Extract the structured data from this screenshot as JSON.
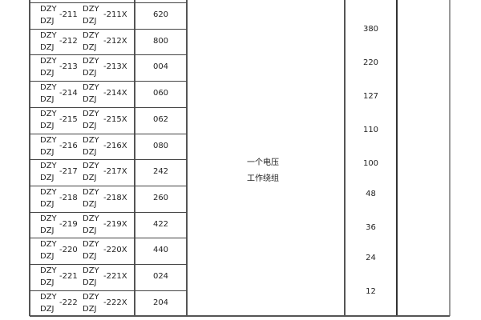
{
  "rows": [
    {
      "prefix_a": "DZY",
      "prefix_b": "DZJ",
      "code": "-211",
      "prefix_c": "DZY",
      "prefix_d": "DZJ",
      "code_x": "-211X",
      "number": "620"
    },
    {
      "prefix_a": "DZY",
      "prefix_b": "DZJ",
      "code": "-212",
      "prefix_c": "DZY",
      "prefix_d": "DZJ",
      "code_x": "-212X",
      "number": "800"
    },
    {
      "prefix_a": "DZY",
      "prefix_b": "DZJ",
      "code": "-213",
      "prefix_c": "DZY",
      "prefix_d": "DZJ",
      "code_x": "-213X",
      "number": "004"
    },
    {
      "prefix_a": "DZY",
      "prefix_b": "DZJ",
      "code": "-214",
      "prefix_c": "DZY",
      "prefix_d": "DZJ",
      "code_x": "-214X",
      "number": "060"
    },
    {
      "prefix_a": "DZY",
      "prefix_b": "DZJ",
      "code": "-215",
      "prefix_c": "DZY",
      "prefix_d": "DZJ",
      "code_x": "-215X",
      "number": "062"
    },
    {
      "prefix_a": "DZY",
      "prefix_b": "DZJ",
      "code": "-216",
      "prefix_c": "DZY",
      "prefix_d": "DZJ",
      "code_x": "-216X",
      "number": "080"
    },
    {
      "prefix_a": "DZY",
      "prefix_b": "DZJ",
      "code": "-217",
      "prefix_c": "DZY",
      "prefix_d": "DZJ",
      "code_x": "-217X",
      "number": "242"
    },
    {
      "prefix_a": "DZY",
      "prefix_b": "DZJ",
      "code": "-218",
      "prefix_c": "DZY",
      "prefix_d": "DZJ",
      "code_x": "-218X",
      "number": "260"
    },
    {
      "prefix_a": "DZY",
      "prefix_b": "DZJ",
      "code": "-219",
      "prefix_c": "DZY",
      "prefix_d": "DZJ",
      "code_x": "-219X",
      "number": "422"
    },
    {
      "prefix_a": "DZY",
      "prefix_b": "DZJ",
      "code": "-220",
      "prefix_c": "DZY",
      "prefix_d": "DZJ",
      "code_x": "-220X",
      "number": "440"
    },
    {
      "prefix_a": "DZY",
      "prefix_b": "DZJ",
      "code": "-221",
      "prefix_c": "DZY",
      "prefix_d": "DZJ",
      "code_x": "-221X",
      "number": "024"
    },
    {
      "prefix_a": "DZY",
      "prefix_b": "DZJ",
      "code": "-222",
      "prefix_c": "DZY",
      "prefix_d": "DZJ",
      "code_x": "-222X",
      "number": "204"
    }
  ],
  "description": {
    "line1": "一个电压",
    "line2": "工作绕组"
  },
  "voltages": [
    "380",
    "220",
    "127",
    "110",
    "100",
    "48",
    "36",
    "24",
    "12"
  ]
}
